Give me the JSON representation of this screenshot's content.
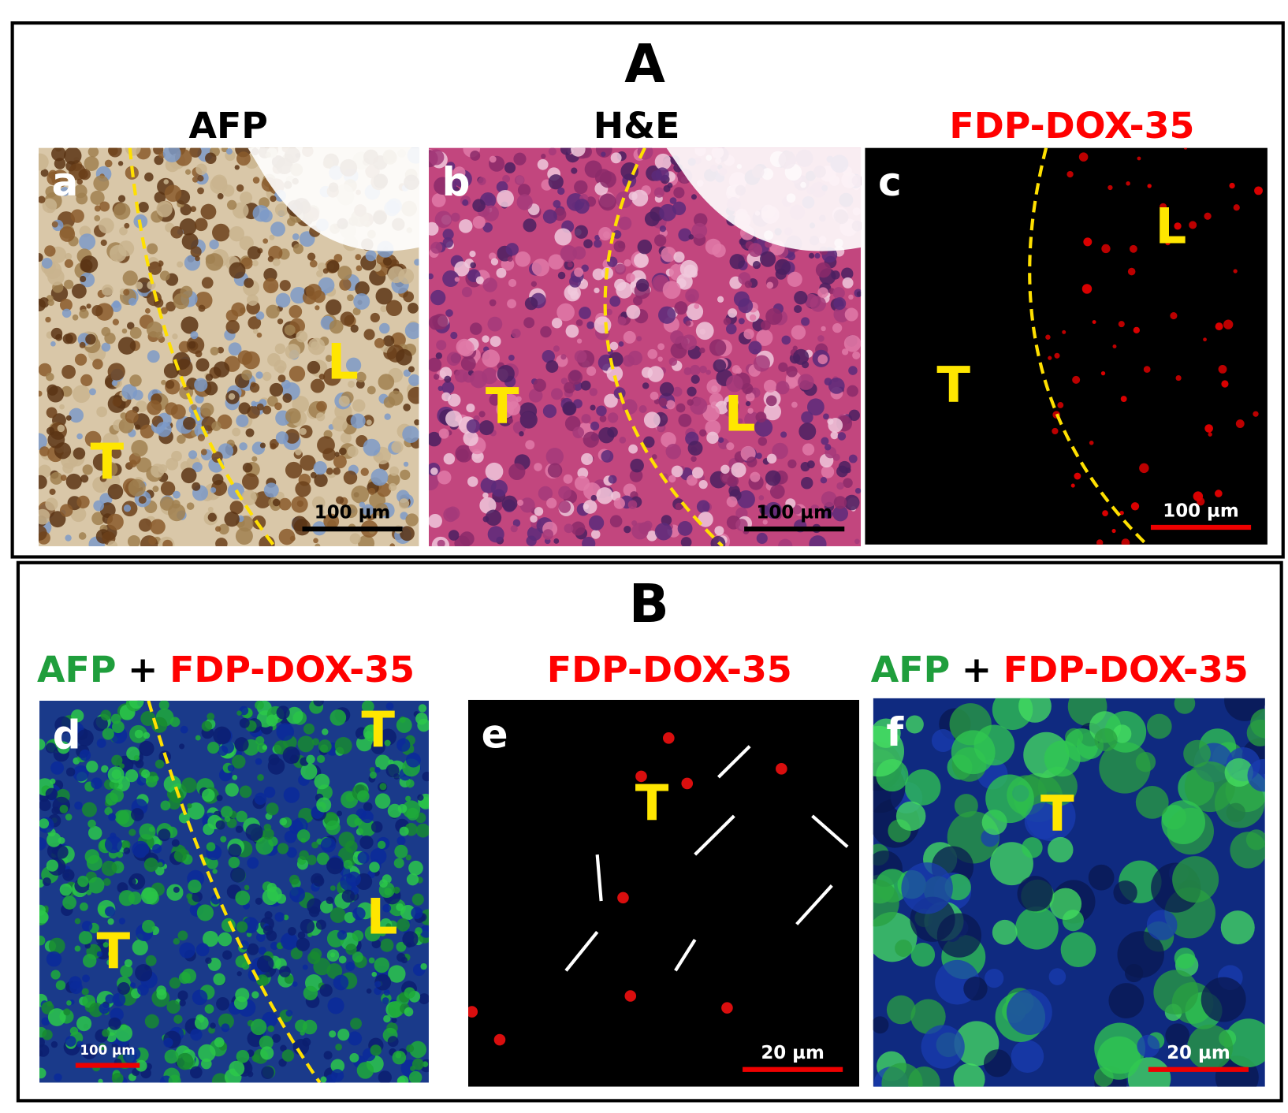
{
  "figure": {
    "sections": [
      {
        "label": "A",
        "panels": [
          {
            "title": [
              {
                "text": "AFP",
                "color": "#000000"
              }
            ],
            "letter": "a",
            "regions": [
              "T",
              "L"
            ],
            "scale_bar": "100 µm"
          },
          {
            "title": [
              {
                "text": "H&E",
                "color": "#000000"
              }
            ],
            "letter": "b",
            "regions": [
              "T",
              "L"
            ],
            "scale_bar": "100 µm"
          },
          {
            "title": [
              {
                "text": "FDP-DOX-35",
                "color": "#ff0000"
              }
            ],
            "letter": "c",
            "regions": [
              "T",
              "L"
            ],
            "scale_bar": "100 µm"
          }
        ]
      },
      {
        "label": "B",
        "panels": [
          {
            "title": [
              {
                "text": "AFP",
                "color": "#1f9e3c"
              },
              {
                "text": "+",
                "color": "#000000"
              },
              {
                "text": "FDP-DOX-35",
                "color": "#ff0000"
              }
            ],
            "letter": "d",
            "regions": [
              "T",
              "T",
              "L"
            ],
            "scale_bar": "100 µm"
          },
          {
            "title": [
              {
                "text": "FDP-DOX-35",
                "color": "#ff0000"
              }
            ],
            "letter": "e",
            "regions": [
              "T"
            ],
            "scale_bar": "20 µm"
          },
          {
            "title": [
              {
                "text": "AFP",
                "color": "#1f9e3c"
              },
              {
                "text": "+",
                "color": "#000000"
              },
              {
                "text": "FDP-DOX-35",
                "color": "#ff0000"
              }
            ],
            "letter": "f",
            "regions": [
              "T"
            ],
            "scale_bar": "20 µm"
          }
        ]
      }
    ]
  }
}
